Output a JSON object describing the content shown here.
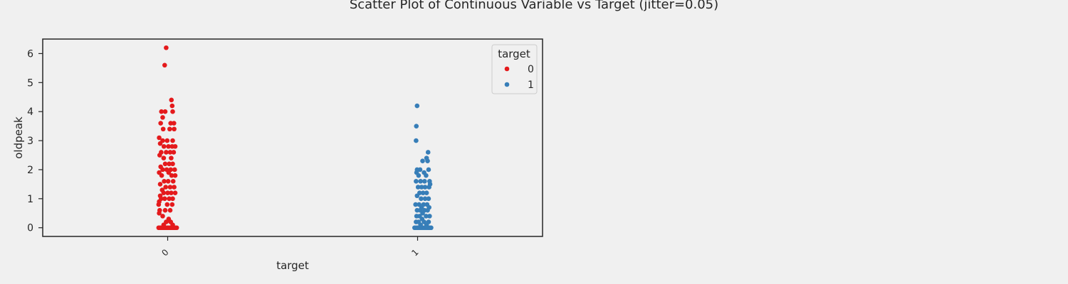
{
  "chart_data": {
    "type": "scatter",
    "title": "Scatter Plot of Continuous Variable vs Target (jitter=0.05)",
    "xlabel": "target",
    "ylabel": "oldpeak",
    "categories": [
      "0",
      "1"
    ],
    "ylim": [
      -0.3,
      6.5
    ],
    "yticks": [
      "0",
      "1",
      "2",
      "3",
      "4",
      "5",
      "6"
    ],
    "grid": false,
    "legend": {
      "title": "target",
      "placement": "top-right",
      "entries": [
        "0",
        "1"
      ]
    },
    "series": [
      {
        "name": "0",
        "color": "#e41a1c",
        "points": [
          [
            -0.006,
            6.2
          ],
          [
            -0.012,
            5.6
          ],
          [
            0.015,
            4.4
          ],
          [
            0.018,
            4.2
          ],
          [
            -0.01,
            4.0
          ],
          [
            -0.025,
            4.0
          ],
          [
            0.02,
            4.0
          ],
          [
            -0.02,
            3.8
          ],
          [
            -0.028,
            3.6
          ],
          [
            0.012,
            3.6
          ],
          [
            0.025,
            3.6
          ],
          [
            -0.018,
            3.4
          ],
          [
            0.008,
            3.4
          ],
          [
            0.026,
            3.4
          ],
          [
            -0.034,
            3.1
          ],
          [
            -0.02,
            3.0
          ],
          [
            -0.002,
            3.0
          ],
          [
            0.02,
            3.0
          ],
          [
            -0.03,
            2.9
          ],
          [
            -0.015,
            2.8
          ],
          [
            0.003,
            2.8
          ],
          [
            0.018,
            2.8
          ],
          [
            0.03,
            2.8
          ],
          [
            -0.006,
            2.6
          ],
          [
            0.01,
            2.6
          ],
          [
            0.024,
            2.6
          ],
          [
            -0.026,
            2.6
          ],
          [
            -0.032,
            2.5
          ],
          [
            -0.016,
            2.4
          ],
          [
            0.014,
            2.4
          ],
          [
            -0.01,
            2.2
          ],
          [
            0.006,
            2.2
          ],
          [
            0.02,
            2.2
          ],
          [
            -0.028,
            2.1
          ],
          [
            -0.02,
            2.0
          ],
          [
            -0.004,
            2.0
          ],
          [
            0.012,
            2.0
          ],
          [
            0.028,
            2.0
          ],
          [
            -0.034,
            1.9
          ],
          [
            0.004,
            1.9
          ],
          [
            -0.024,
            1.8
          ],
          [
            0.016,
            1.8
          ],
          [
            0.03,
            1.8
          ],
          [
            -0.014,
            1.6
          ],
          [
            0.002,
            1.6
          ],
          [
            0.022,
            1.6
          ],
          [
            -0.03,
            1.5
          ],
          [
            -0.008,
            1.4
          ],
          [
            0.01,
            1.4
          ],
          [
            0.026,
            1.4
          ],
          [
            -0.022,
            1.3
          ],
          [
            -0.016,
            1.2
          ],
          [
            0.0,
            1.2
          ],
          [
            0.014,
            1.2
          ],
          [
            0.03,
            1.2
          ],
          [
            -0.03,
            1.1
          ],
          [
            -0.012,
            1.0
          ],
          [
            0.006,
            1.0
          ],
          [
            0.02,
            1.0
          ],
          [
            -0.026,
            1.0
          ],
          [
            -0.034,
            0.9
          ],
          [
            -0.036,
            0.8
          ],
          [
            -0.002,
            0.8
          ],
          [
            0.018,
            0.8
          ],
          [
            -0.01,
            0.6
          ],
          [
            0.01,
            0.6
          ],
          [
            -0.032,
            0.6
          ],
          [
            -0.034,
            0.5
          ],
          [
            -0.02,
            0.4
          ],
          [
            0.004,
            0.3
          ],
          [
            -0.006,
            0.2
          ],
          [
            0.012,
            0.2
          ],
          [
            -0.016,
            0.1
          ],
          [
            0.02,
            0.1
          ],
          [
            -0.036,
            0.0
          ],
          [
            -0.03,
            0.0
          ],
          [
            -0.024,
            0.0
          ],
          [
            -0.018,
            0.0
          ],
          [
            -0.012,
            0.0
          ],
          [
            -0.006,
            0.0
          ],
          [
            0.0,
            0.0
          ],
          [
            0.006,
            0.0
          ],
          [
            0.012,
            0.0
          ],
          [
            0.018,
            0.0
          ],
          [
            0.024,
            0.0
          ],
          [
            0.03,
            0.0
          ],
          [
            0.036,
            0.0
          ]
        ]
      },
      {
        "name": "1",
        "color": "#377eb8",
        "points": [
          [
            0.998,
            4.2
          ],
          [
            0.995,
            3.5
          ],
          [
            0.994,
            3.0
          ],
          [
            1.042,
            2.6
          ],
          [
            1.036,
            2.4
          ],
          [
            1.02,
            2.3
          ],
          [
            1.04,
            2.3
          ],
          [
            0.998,
            2.0
          ],
          [
            1.01,
            2.0
          ],
          [
            1.044,
            2.0
          ],
          [
            0.996,
            1.9
          ],
          [
            1.026,
            1.9
          ],
          [
            1.004,
            1.8
          ],
          [
            1.034,
            1.8
          ],
          [
            0.994,
            1.6
          ],
          [
            1.012,
            1.6
          ],
          [
            1.028,
            1.6
          ],
          [
            1.048,
            1.6
          ],
          [
            1.05,
            1.5
          ],
          [
            1.002,
            1.4
          ],
          [
            1.016,
            1.4
          ],
          [
            1.03,
            1.4
          ],
          [
            1.046,
            1.4
          ],
          [
            1.008,
            1.2
          ],
          [
            1.022,
            1.2
          ],
          [
            1.036,
            1.2
          ],
          [
            0.998,
            1.1
          ],
          [
            1.014,
            1.0
          ],
          [
            1.03,
            1.0
          ],
          [
            1.044,
            1.0
          ],
          [
            0.992,
            0.8
          ],
          [
            1.006,
            0.8
          ],
          [
            1.024,
            0.8
          ],
          [
            1.038,
            0.8
          ],
          [
            1.016,
            0.7
          ],
          [
            1.046,
            0.7
          ],
          [
            0.998,
            0.6
          ],
          [
            1.01,
            0.6
          ],
          [
            1.028,
            0.6
          ],
          [
            1.04,
            0.6
          ],
          [
            1.02,
            0.5
          ],
          [
            0.996,
            0.4
          ],
          [
            1.008,
            0.4
          ],
          [
            1.034,
            0.4
          ],
          [
            1.048,
            0.4
          ],
          [
            1.018,
            0.3
          ],
          [
            0.994,
            0.2
          ],
          [
            1.004,
            0.2
          ],
          [
            1.026,
            0.2
          ],
          [
            1.044,
            0.2
          ],
          [
            1.012,
            0.1
          ],
          [
            1.036,
            0.1
          ],
          [
            0.988,
            0.0
          ],
          [
            0.994,
            0.0
          ],
          [
            1.0,
            0.0
          ],
          [
            1.006,
            0.0
          ],
          [
            1.012,
            0.0
          ],
          [
            1.018,
            0.0
          ],
          [
            1.024,
            0.0
          ],
          [
            1.03,
            0.0
          ],
          [
            1.036,
            0.0
          ],
          [
            1.042,
            0.0
          ],
          [
            1.048,
            0.0
          ],
          [
            1.054,
            0.0
          ]
        ]
      }
    ]
  }
}
